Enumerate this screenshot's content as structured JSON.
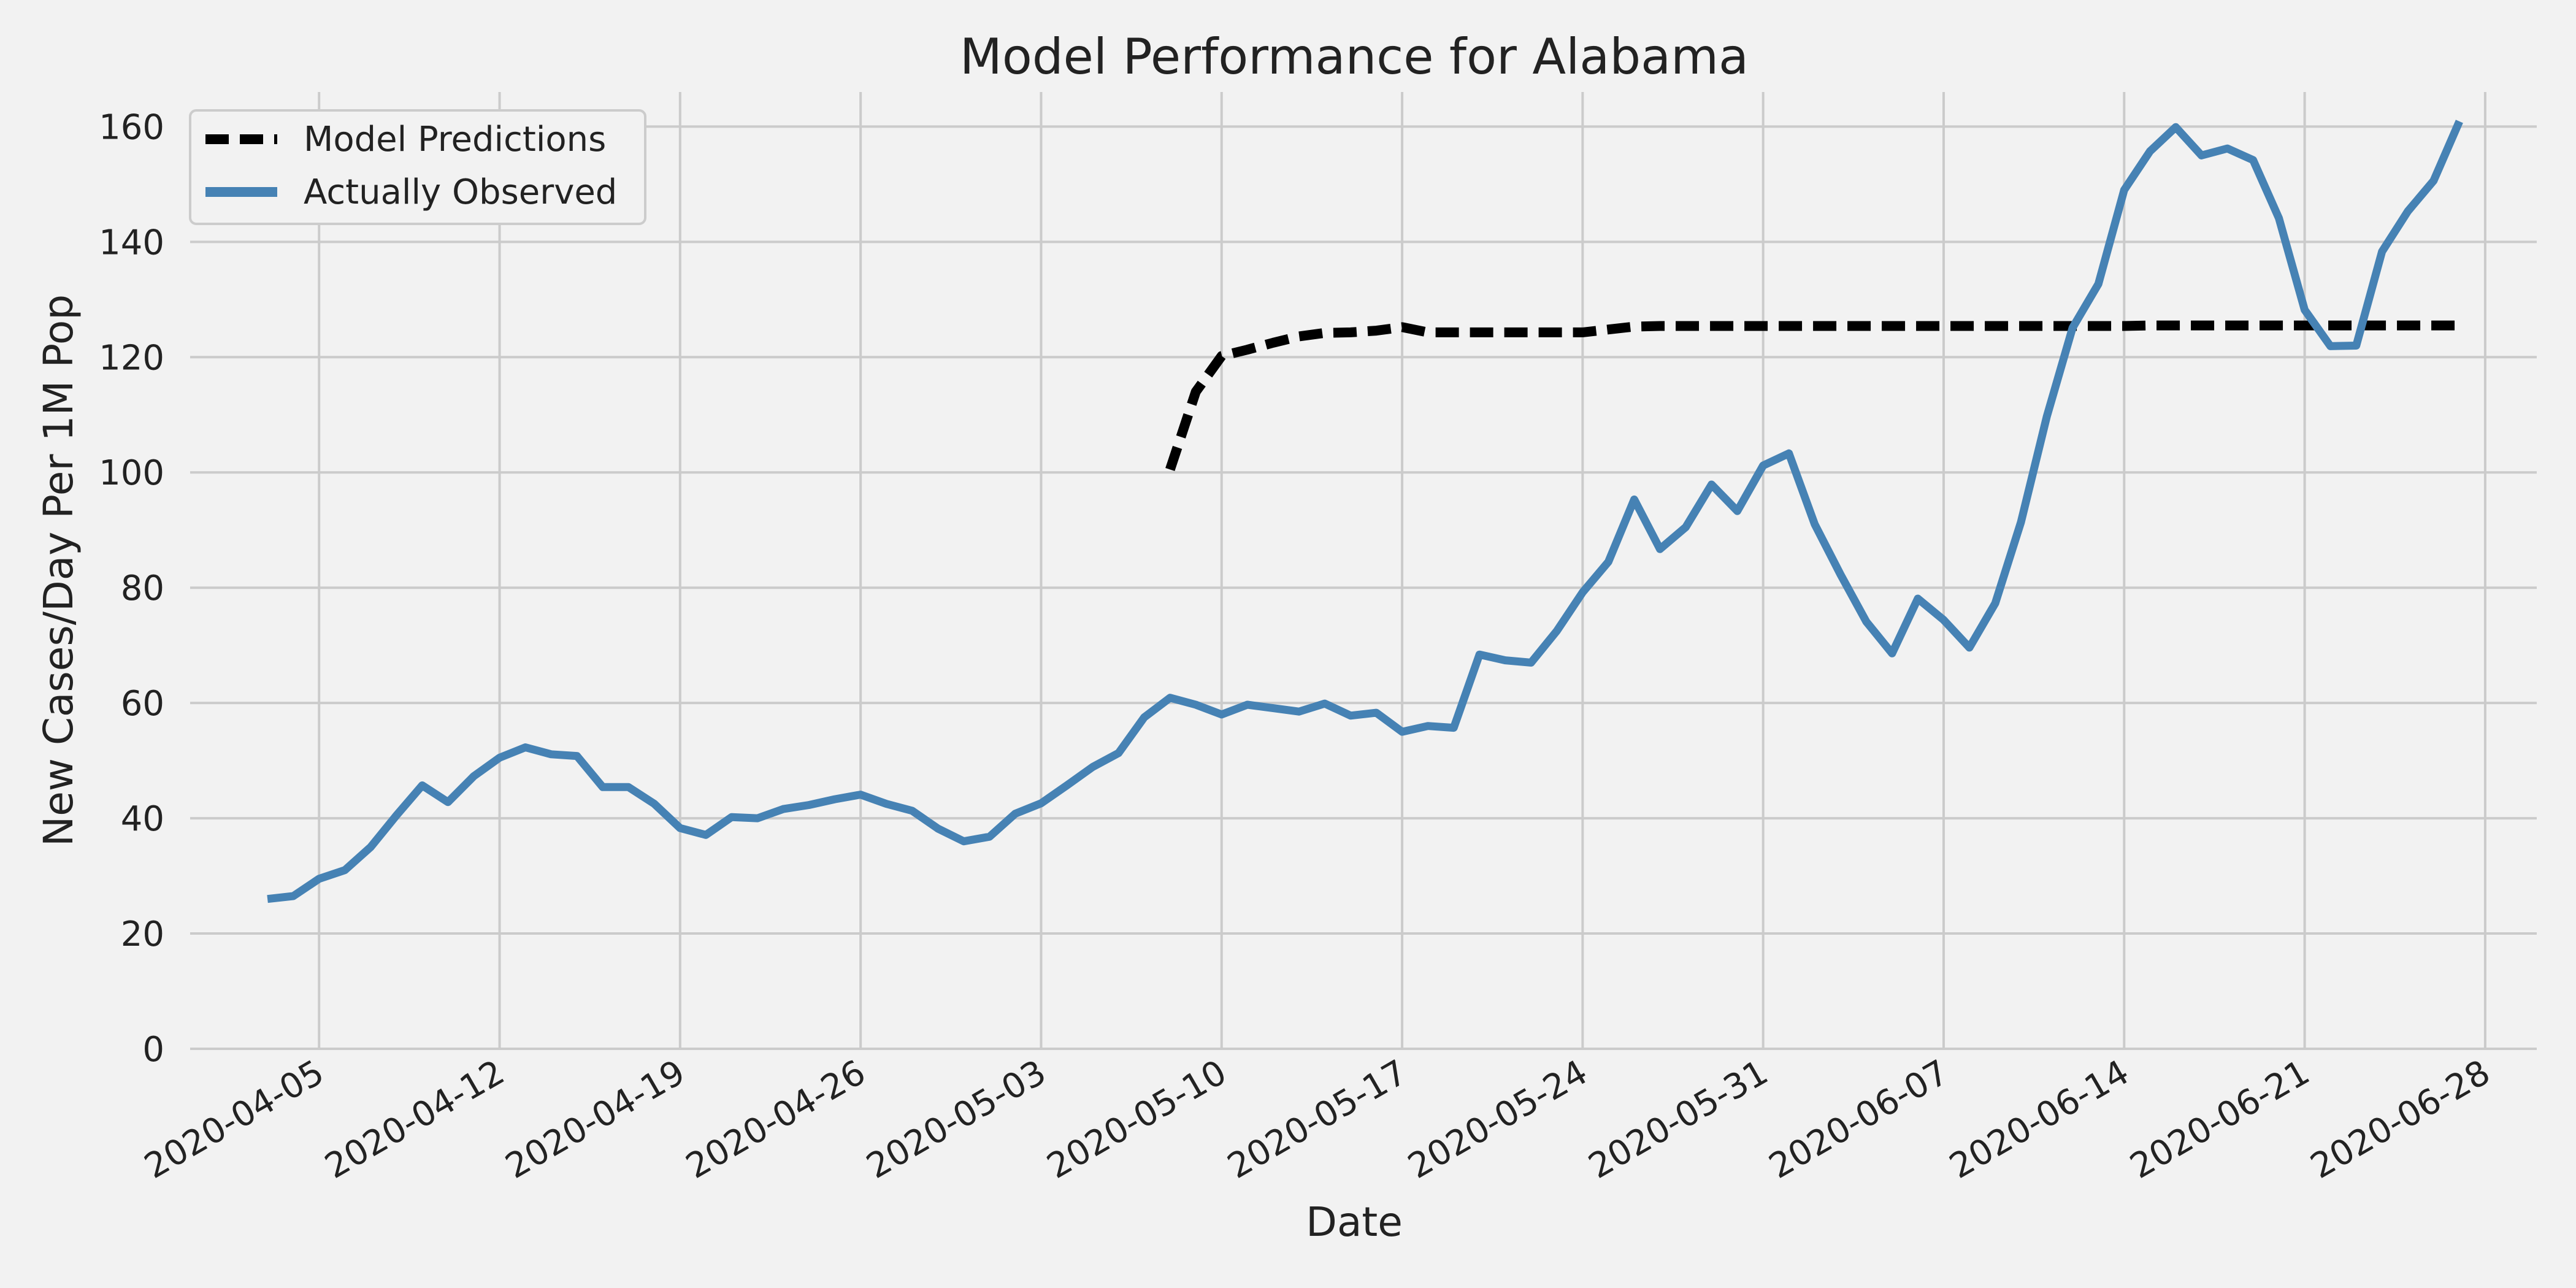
{
  "chart_data": {
    "type": "line",
    "title": "Model Performance for Alabama",
    "xlabel": "Date",
    "ylabel": "New Cases/Day Per 1M Pop",
    "xlim": [
      "2020-03-31",
      "2020-06-30"
    ],
    "ylim": [
      0,
      166
    ],
    "grid": true,
    "legend_position": "top-left",
    "x_ticks": [
      "2020-04-05",
      "2020-04-12",
      "2020-04-19",
      "2020-04-26",
      "2020-05-03",
      "2020-05-10",
      "2020-05-17",
      "2020-05-24",
      "2020-05-31",
      "2020-06-07",
      "2020-06-14",
      "2020-06-21",
      "2020-06-28"
    ],
    "y_ticks": [
      0,
      20,
      40,
      60,
      80,
      100,
      120,
      140,
      160
    ],
    "series": [
      {
        "name": "Model Predictions",
        "color": "#000000",
        "dash": true,
        "start_date": "2020-05-08",
        "values": [
          100.5,
          114,
          120.2,
          121.3,
          122.5,
          123.6,
          124.2,
          124.3,
          124.6,
          125.2,
          124.3,
          124.3,
          124.3,
          124.3,
          124.3,
          124.3,
          124.3,
          124.8,
          125.3,
          125.4,
          125.4,
          125.4,
          125.4,
          125.4,
          125.4,
          125.4,
          125.4,
          125.4,
          125.4,
          125.4,
          125.4,
          125.4,
          125.4,
          125.4,
          125.4,
          125.4,
          125.4,
          125.4,
          125.5,
          125.5,
          125.5,
          125.5,
          125.5,
          125.5,
          125.5,
          125.5,
          125.5,
          125.5,
          125.5,
          125.5,
          125.5
        ]
      },
      {
        "name": "Actually Observed",
        "color": "#4682b4",
        "dash": false,
        "start_date": "2020-04-03",
        "values": [
          26,
          26.5,
          29.5,
          31,
          35,
          40.5,
          45.7,
          42.8,
          47.3,
          50.5,
          52.3,
          51.1,
          50.8,
          45.4,
          45.4,
          42.5,
          38.3,
          37.1,
          40.2,
          40,
          41.6,
          42.3,
          43.3,
          44.1,
          42.5,
          41.3,
          38.2,
          36,
          36.8,
          40.8,
          42.6,
          45.7,
          48.9,
          51.3,
          57.5,
          60.9,
          59.7,
          58,
          59.7,
          59.1,
          58.5,
          59.9,
          57.8,
          58.3,
          55,
          56,
          55.7,
          68.4,
          67.4,
          67,
          72.5,
          79.2,
          84.5,
          95.3,
          86.7,
          90.5,
          97.9,
          93.3,
          101.2,
          103.3,
          91,
          82.3,
          74.1,
          68.6,
          78.1,
          74.4,
          69.6,
          77.3,
          91.4,
          109.7,
          125.1,
          132.7,
          149,
          155.7,
          159.9,
          155,
          156.2,
          154.2,
          144.1,
          128.2,
          121.9,
          122,
          138.3,
          145.3,
          150.6,
          160.9
        ]
      }
    ]
  }
}
